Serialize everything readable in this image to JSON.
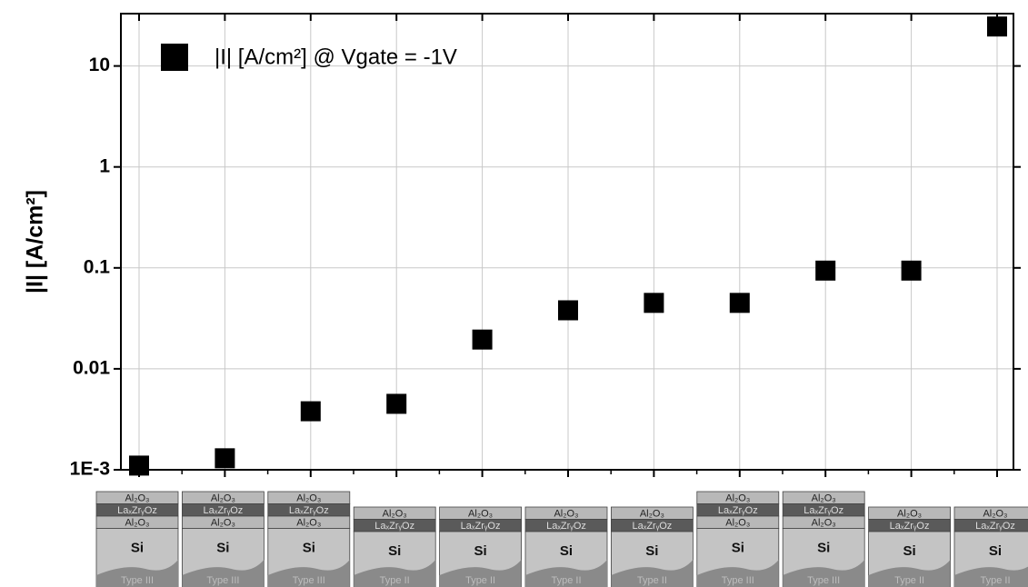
{
  "chart_data": {
    "type": "scatter",
    "y_label": "|I| [A/cm²]",
    "categories": [
      null,
      null,
      null,
      null,
      null,
      null,
      null,
      null,
      null,
      null,
      null
    ],
    "series": [
      {
        "name": "|I| [A/cm²] @ Vgate = -1V",
        "color": "#000000",
        "values": [
          0.0011,
          0.0013,
          0.0038,
          0.0045,
          0.0195,
          0.038,
          0.045,
          0.045,
          0.094,
          0.094,
          24.6
        ]
      }
    ],
    "ylim": [
      0.001,
      33
    ],
    "log_y": true,
    "grid": true,
    "legend": "top-left",
    "yticks": [
      {
        "value": 0.001,
        "label": "1E-3"
      },
      0.01,
      0.1,
      1,
      10
    ],
    "stacks": [
      {
        "layers": [
          "Al₂O₃",
          "LaₓZrᵧOz",
          "Al₂O₃"
        ],
        "substrate": "Si",
        "kind": "Type III"
      },
      {
        "layers": [
          "Al₂O₃",
          "LaₓZrᵧOz",
          "Al₂O₃"
        ],
        "substrate": "Si",
        "kind": "Type III"
      },
      {
        "layers": [
          "Al₂O₃",
          "LaₓZrᵧOz",
          "Al₂O₃"
        ],
        "substrate": "Si",
        "kind": "Type III"
      },
      {
        "layers": [
          "Al₂O₃",
          "LaₓZrᵧOz"
        ],
        "substrate": "Si",
        "kind": "Type II"
      },
      {
        "layers": [
          "Al₂O₃",
          "LaₓZrᵧOz"
        ],
        "substrate": "Si",
        "kind": "Type II"
      },
      {
        "layers": [
          "Al₂O₃",
          "LaₓZrᵧOz"
        ],
        "substrate": "Si",
        "kind": "Type II"
      },
      {
        "layers": [
          "Al₂O₃",
          "LaₓZrᵧOz"
        ],
        "substrate": "Si",
        "kind": "Type II"
      },
      {
        "layers": [
          "Al₂O₃",
          "LaₓZrᵧOz",
          "Al₂O₃"
        ],
        "substrate": "Si",
        "kind": "Type III"
      },
      {
        "layers": [
          "Al₂O₃",
          "LaₓZrᵧOz",
          "Al₂O₃"
        ],
        "substrate": "Si",
        "kind": "Type III"
      },
      {
        "layers": [
          "Al₂O₃",
          "LaₓZrᵧOz"
        ],
        "substrate": "Si",
        "kind": "Type II"
      },
      {
        "layers": [
          "Al₂O₃",
          "LaₓZrᵧOz"
        ],
        "substrate": "Si",
        "kind": "Type II"
      }
    ]
  }
}
